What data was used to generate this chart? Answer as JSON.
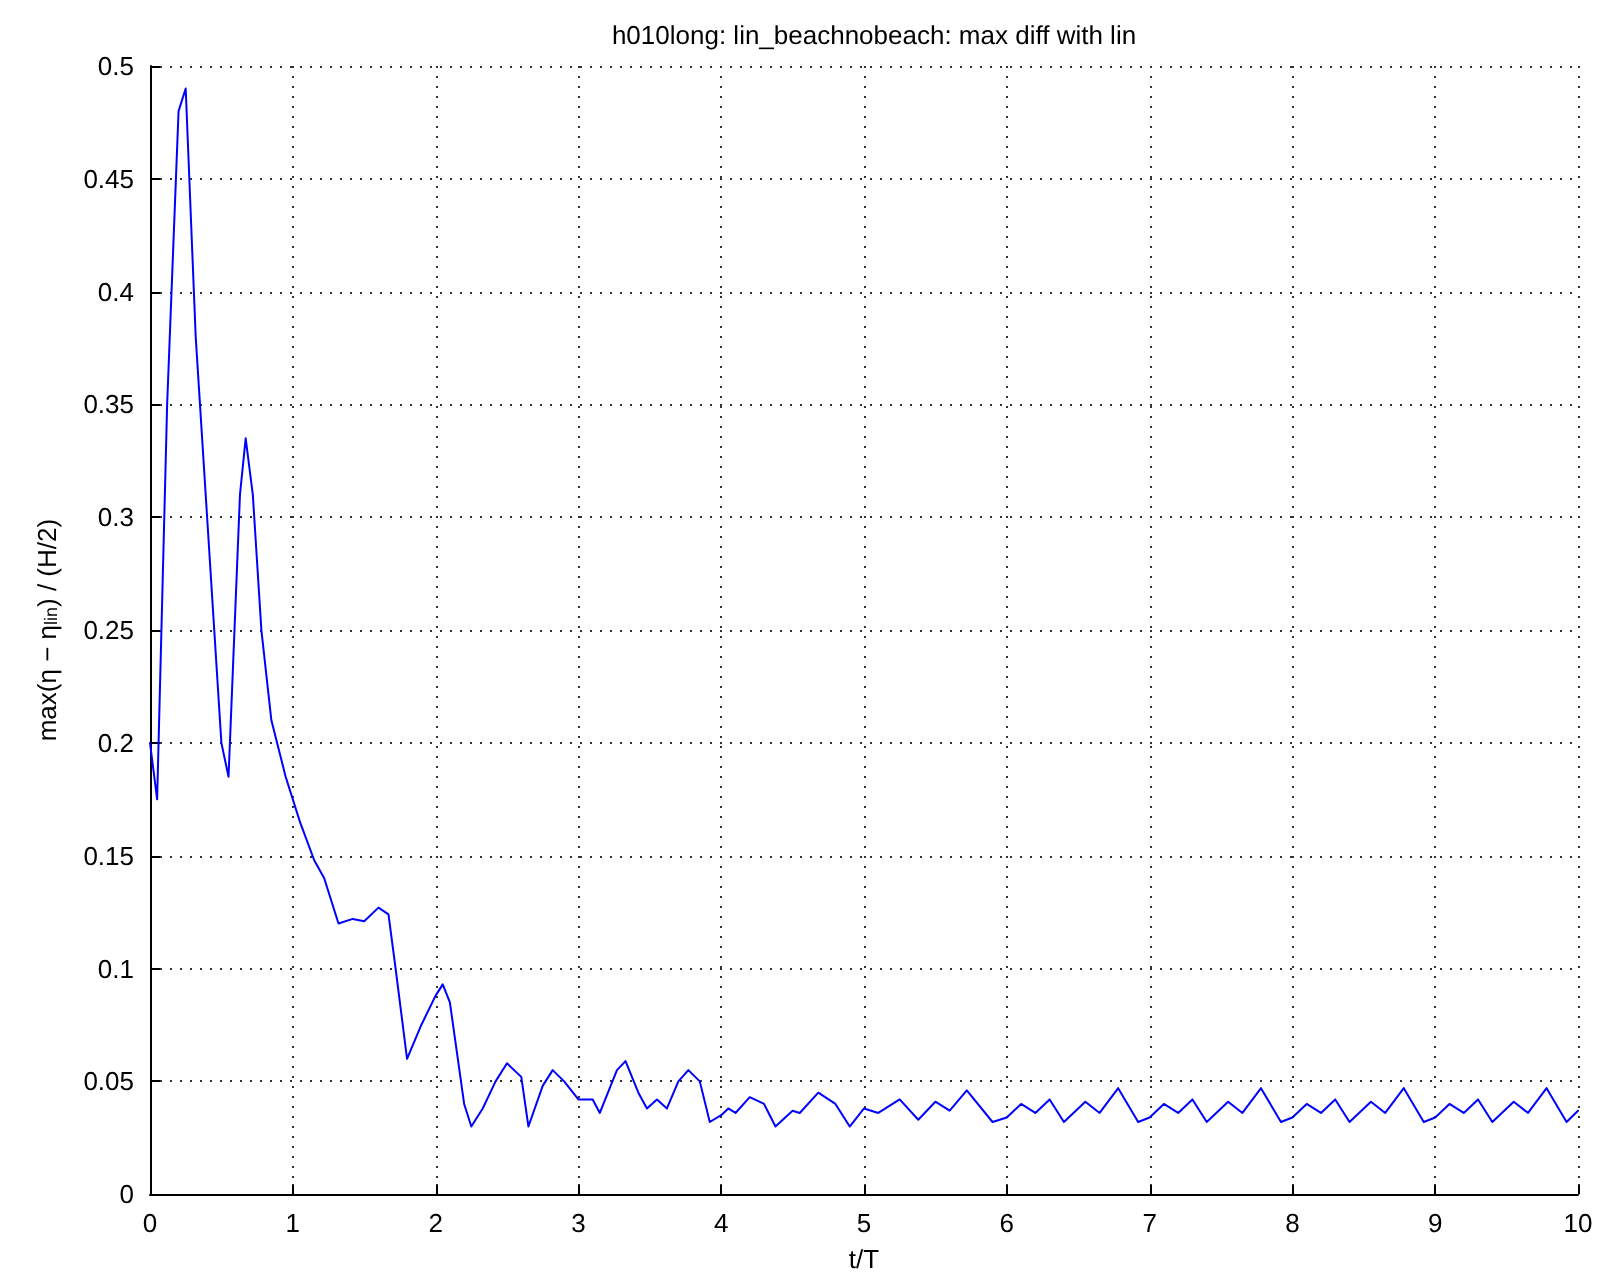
{
  "chart_data": {
    "type": "line",
    "title": "h010long: lin_beachnobeach: max diff with lin",
    "xlabel": "t/T",
    "ylabel": "max(η − η$_{lin}$) / (H/2)",
    "series": [
      {
        "color": "#0000ff",
        "x": [
          0,
          0.05,
          0.12,
          0.2,
          0.25,
          0.32,
          0.4,
          0.5,
          0.55,
          0.63,
          0.67,
          0.72,
          0.78,
          0.85,
          0.95,
          1.05,
          1.15,
          1.22,
          1.32,
          1.42,
          1.5,
          1.6,
          1.67,
          1.72,
          1.8,
          1.9,
          2.0,
          2.05,
          2.1,
          2.2,
          2.25,
          2.33,
          2.42,
          2.5,
          2.6,
          2.65,
          2.75,
          2.82,
          2.9,
          3.0,
          3.1,
          3.15,
          3.27,
          3.33,
          3.42,
          3.48,
          3.55,
          3.62,
          3.7,
          3.77,
          3.85,
          3.92,
          4.0,
          4.05,
          4.1,
          4.2,
          4.3,
          4.38,
          4.5,
          4.55,
          4.68,
          4.8,
          4.9,
          5.0,
          5.1,
          5.25,
          5.38,
          5.5,
          5.6,
          5.72,
          5.9,
          6.0,
          6.1,
          6.2,
          6.3,
          6.4,
          6.55,
          6.65,
          6.78,
          6.92,
          7.0,
          7.1,
          7.2,
          7.3,
          7.4,
          7.55,
          7.65,
          7.78,
          7.92,
          8.0,
          8.1,
          8.2,
          8.3,
          8.4,
          8.55,
          8.65,
          8.78,
          8.92,
          9.0,
          9.1,
          9.2,
          9.3,
          9.4,
          9.55,
          9.65,
          9.78,
          9.92,
          10.0
        ],
        "values": [
          0.2,
          0.175,
          0.35,
          0.48,
          0.49,
          0.38,
          0.3,
          0.2,
          0.185,
          0.31,
          0.335,
          0.31,
          0.25,
          0.21,
          0.185,
          0.165,
          0.148,
          0.14,
          0.12,
          0.122,
          0.121,
          0.127,
          0.124,
          0.1,
          0.06,
          0.075,
          0.088,
          0.093,
          0.085,
          0.04,
          0.03,
          0.038,
          0.05,
          0.058,
          0.052,
          0.03,
          0.048,
          0.055,
          0.05,
          0.042,
          0.042,
          0.036,
          0.055,
          0.059,
          0.045,
          0.038,
          0.042,
          0.038,
          0.05,
          0.055,
          0.05,
          0.032,
          0.035,
          0.038,
          0.036,
          0.043,
          0.04,
          0.03,
          0.037,
          0.036,
          0.045,
          0.04,
          0.03,
          0.038,
          0.036,
          0.042,
          0.033,
          0.041,
          0.037,
          0.046,
          0.032,
          0.034,
          0.04,
          0.036,
          0.042,
          0.032,
          0.041,
          0.036,
          0.047,
          0.032,
          0.034,
          0.04,
          0.036,
          0.042,
          0.032,
          0.041,
          0.036,
          0.047,
          0.032,
          0.034,
          0.04,
          0.036,
          0.042,
          0.032,
          0.041,
          0.036,
          0.047,
          0.032,
          0.034,
          0.04,
          0.036,
          0.042,
          0.032,
          0.041,
          0.036,
          0.047,
          0.032,
          0.037
        ]
      }
    ],
    "xlim": [
      0,
      10
    ],
    "xticks": [
      0,
      1,
      2,
      3,
      4,
      5,
      6,
      7,
      8,
      9,
      10
    ],
    "ylim": [
      0,
      0.5
    ],
    "yticks": [
      0,
      0.05,
      0.1,
      0.15,
      0.2,
      0.25,
      0.3,
      0.35,
      0.4,
      0.45,
      0.5
    ],
    "grid": true,
    "marker": "none",
    "line_style": "solid"
  }
}
